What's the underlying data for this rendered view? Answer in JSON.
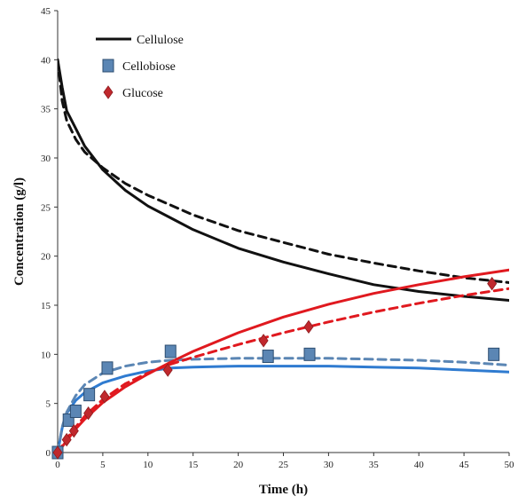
{
  "chart_data": {
    "type": "scatter",
    "xlabel": "Time (h)",
    "ylabel": "Concentration (g/l)",
    "xlim": [
      0,
      50
    ],
    "ylim": [
      0,
      45
    ],
    "xticks": [
      0,
      5,
      10,
      15,
      20,
      25,
      30,
      35,
      40,
      45,
      50
    ],
    "yticks": [
      0,
      5,
      10,
      15,
      20,
      25,
      30,
      35,
      40,
      45
    ],
    "grid": false,
    "legend_position": "top-left",
    "legend": [
      {
        "label": "Cellulose",
        "symbol": "line",
        "color": "#111111"
      },
      {
        "label": "Cellobiose",
        "symbol": "square",
        "color": "#5b86b4"
      },
      {
        "label": "Glucose",
        "symbol": "diamond",
        "color": "#c0282d"
      }
    ],
    "series": [
      {
        "name": "Cellobiose",
        "kind": "points",
        "marker": "square",
        "color": "#5b86b4",
        "x": [
          0,
          1.2,
          2,
          3.5,
          5.5,
          12.5,
          23.3,
          27.9,
          48.3
        ],
        "y": [
          0,
          3.3,
          4.2,
          5.9,
          8.6,
          10.3,
          9.8,
          10.0,
          10.0
        ]
      },
      {
        "name": "Glucose",
        "kind": "points",
        "marker": "diamond",
        "color": "#c0282d",
        "x": [
          0,
          1,
          1.8,
          3.4,
          5.2,
          12.2,
          22.8,
          27.8,
          48.1
        ],
        "y": [
          0,
          1.3,
          2.2,
          4.0,
          5.7,
          8.4,
          11.4,
          12.8,
          17.2
        ]
      },
      {
        "name": "Cellulose",
        "kind": "line",
        "style": "solid",
        "color": "#111111",
        "x": [
          0,
          0.5,
          1,
          2,
          3,
          5,
          7.5,
          10,
          12.5,
          15,
          20,
          25,
          30,
          35,
          40,
          45,
          50
        ],
        "y": [
          40,
          37.2,
          34.8,
          33.0,
          31.2,
          28.8,
          26.7,
          25.1,
          23.9,
          22.7,
          20.8,
          19.4,
          18.2,
          17.1,
          16.4,
          15.9,
          15.5
        ]
      },
      {
        "name": "",
        "kind": "line",
        "style": "dashed",
        "color": "#111111",
        "x": [
          0,
          0.5,
          1,
          2,
          3,
          5,
          7.5,
          10,
          12.5,
          15,
          20,
          25,
          30,
          35,
          40,
          45,
          50
        ],
        "y": [
          40,
          35.8,
          33.8,
          31.9,
          30.6,
          29.0,
          27.4,
          26.2,
          25.2,
          24.2,
          22.6,
          21.4,
          20.2,
          19.3,
          18.5,
          17.8,
          17.3
        ]
      },
      {
        "name": "",
        "kind": "line",
        "style": "solid",
        "color": "#2f7bd0",
        "x": [
          0,
          0.5,
          1,
          2,
          3,
          5,
          7.5,
          10,
          12.5,
          15,
          20,
          25,
          30,
          35,
          40,
          45,
          50
        ],
        "y": [
          0,
          2.5,
          4.0,
          5.3,
          6.1,
          7.1,
          7.8,
          8.3,
          8.6,
          8.7,
          8.8,
          8.8,
          8.8,
          8.7,
          8.6,
          8.4,
          8.2
        ]
      },
      {
        "name": "",
        "kind": "line",
        "style": "dashed",
        "color": "#5b86b4",
        "x": [
          0,
          0.5,
          1,
          2,
          3,
          5,
          7.5,
          10,
          12.5,
          15,
          20,
          25,
          30,
          35,
          40,
          45,
          50
        ],
        "y": [
          0,
          2.6,
          4.1,
          5.8,
          6.9,
          8.1,
          8.8,
          9.2,
          9.4,
          9.5,
          9.6,
          9.6,
          9.6,
          9.5,
          9.4,
          9.2,
          8.9
        ]
      },
      {
        "name": "",
        "kind": "line",
        "style": "solid",
        "color": "#e0191f",
        "x": [
          0,
          0.5,
          1,
          2,
          3,
          5,
          7.5,
          10,
          12.5,
          15,
          20,
          25,
          30,
          35,
          40,
          45,
          50
        ],
        "y": [
          0,
          0.6,
          1.2,
          2.4,
          3.4,
          5.1,
          6.7,
          8.0,
          9.2,
          10.3,
          12.2,
          13.8,
          15.1,
          16.2,
          17.1,
          17.9,
          18.6
        ]
      },
      {
        "name": "",
        "kind": "line",
        "style": "dashed",
        "color": "#e0191f",
        "x": [
          0,
          0.5,
          1,
          2,
          3,
          5,
          7.5,
          10,
          12.5,
          15,
          20,
          25,
          30,
          35,
          40,
          45,
          50
        ],
        "y": [
          0,
          0.7,
          1.4,
          2.6,
          3.7,
          5.4,
          7.0,
          8.1,
          9.0,
          9.7,
          11.0,
          12.2,
          13.3,
          14.3,
          15.2,
          16.0,
          16.7
        ]
      }
    ]
  }
}
